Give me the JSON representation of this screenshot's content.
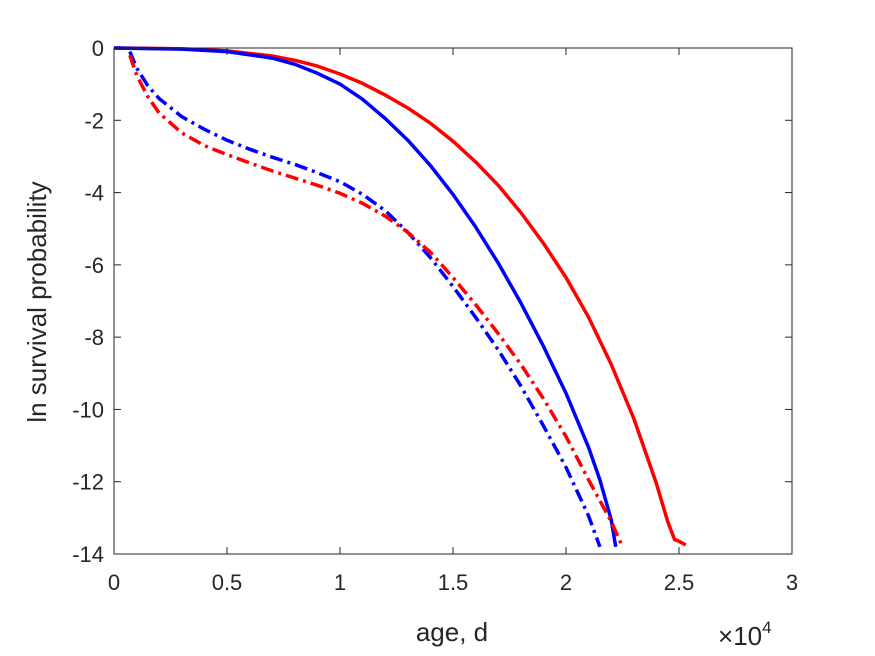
{
  "chart_data": {
    "type": "line",
    "title": "",
    "xlabel": "age, d",
    "ylabel": "ln survival probability",
    "x_multiplier": {
      "base": "10",
      "exponent": "4",
      "prefix": "×"
    },
    "xlim": [
      0,
      3
    ],
    "ylim": [
      -14,
      0
    ],
    "x_ticks": [
      "0",
      "0.5",
      "1",
      "1.5",
      "2",
      "2.5",
      "3"
    ],
    "y_ticks": [
      "0",
      "-2",
      "-4",
      "-6",
      "-8",
      "-10",
      "-12",
      "-14"
    ],
    "grid": false,
    "legend": "none",
    "series": [
      {
        "color": "#ff0000",
        "style": "solid",
        "x": [
          0,
          0.3,
          0.5,
          0.7,
          0.8,
          0.9,
          1.0,
          1.1,
          1.2,
          1.3,
          1.4,
          1.5,
          1.6,
          1.7,
          1.8,
          1.9,
          2.0,
          2.1,
          2.2,
          2.3,
          2.4,
          2.45,
          2.48,
          2.5,
          2.53
        ],
        "y": [
          0,
          -0.02,
          -0.08,
          -0.22,
          -0.34,
          -0.5,
          -0.72,
          -0.98,
          -1.3,
          -1.66,
          -2.08,
          -2.58,
          -3.15,
          -3.8,
          -4.55,
          -5.4,
          -6.35,
          -7.45,
          -8.75,
          -10.25,
          -12.05,
          -13.1,
          -13.6,
          -13.65,
          -13.75
        ]
      },
      {
        "color": "#0000ff",
        "style": "solid",
        "x": [
          0,
          0.3,
          0.5,
          0.7,
          0.8,
          0.9,
          1.0,
          1.1,
          1.2,
          1.3,
          1.4,
          1.5,
          1.6,
          1.7,
          1.8,
          1.9,
          2.0,
          2.1,
          2.15,
          2.2,
          2.22
        ],
        "y": [
          0,
          -0.03,
          -0.1,
          -0.28,
          -0.45,
          -0.7,
          -1.0,
          -1.42,
          -1.95,
          -2.55,
          -3.25,
          -4.05,
          -4.95,
          -5.95,
          -7.05,
          -8.25,
          -9.55,
          -11.05,
          -11.95,
          -13.05,
          -13.8
        ]
      },
      {
        "color": "#0000ff",
        "style": "dashdot",
        "x": [
          0.07,
          0.1,
          0.15,
          0.2,
          0.3,
          0.4,
          0.5,
          0.6,
          0.7,
          0.8,
          0.9,
          1.0,
          1.1,
          1.2,
          1.3,
          1.4,
          1.5,
          1.6,
          1.7,
          1.8,
          1.9,
          2.0,
          2.1,
          2.15
        ],
        "y": [
          -0.1,
          -0.55,
          -1.05,
          -1.4,
          -1.9,
          -2.25,
          -2.55,
          -2.8,
          -3.02,
          -3.22,
          -3.45,
          -3.7,
          -4.05,
          -4.5,
          -5.1,
          -5.8,
          -6.6,
          -7.45,
          -8.35,
          -9.35,
          -10.45,
          -11.6,
          -12.95,
          -13.8
        ]
      },
      {
        "color": "#ff0000",
        "style": "dashdot",
        "x": [
          0.07,
          0.1,
          0.15,
          0.2,
          0.3,
          0.4,
          0.5,
          0.6,
          0.7,
          0.8,
          0.9,
          1.0,
          1.1,
          1.2,
          1.3,
          1.4,
          1.5,
          1.6,
          1.7,
          1.8,
          1.9,
          2.0,
          2.1,
          2.2,
          2.25
        ],
        "y": [
          -0.2,
          -0.75,
          -1.35,
          -1.8,
          -2.35,
          -2.7,
          -2.95,
          -3.18,
          -3.4,
          -3.6,
          -3.8,
          -4.02,
          -4.3,
          -4.65,
          -5.1,
          -5.65,
          -6.35,
          -7.1,
          -7.9,
          -8.75,
          -9.7,
          -10.75,
          -11.95,
          -13.1,
          -13.8
        ]
      }
    ]
  }
}
